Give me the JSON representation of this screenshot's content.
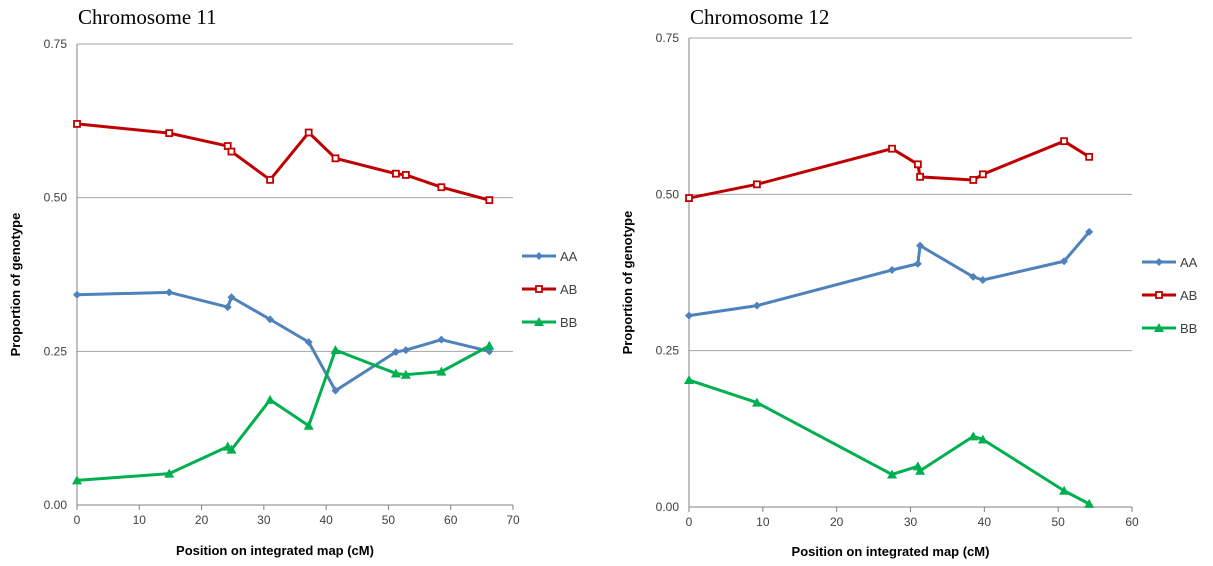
{
  "chart_data": [
    {
      "type": "line",
      "title": "Chromosome 11",
      "xlabel": "Position on integrated map (cM)",
      "ylabel": "Proportion of genotype",
      "xlim": [
        0,
        70
      ],
      "ylim": [
        0,
        0.75
      ],
      "xticks": [
        "0",
        "10",
        "20",
        "30",
        "40",
        "50",
        "60",
        "70"
      ],
      "yticks": [
        "0.00",
        "0.25",
        "0.50",
        "0.75"
      ],
      "grid": "horizontal",
      "legend": "right",
      "series": [
        {
          "name": "AA",
          "color": "#4f81bd",
          "marker": "diamond",
          "x": [
            0,
            14.8,
            24.2,
            24.8,
            31.0,
            37.2,
            41.5,
            51.2,
            52.8,
            58.5,
            66.2
          ],
          "y": [
            0.342,
            0.346,
            0.322,
            0.338,
            0.302,
            0.265,
            0.186,
            0.249,
            0.252,
            0.269,
            0.25
          ]
        },
        {
          "name": "AB",
          "color": "#c00000",
          "marker": "square",
          "x": [
            0,
            14.8,
            24.2,
            24.8,
            31.0,
            37.2,
            41.5,
            51.2,
            52.8,
            58.5,
            66.2
          ],
          "y": [
            0.62,
            0.605,
            0.584,
            0.575,
            0.529,
            0.606,
            0.564,
            0.539,
            0.537,
            0.517,
            0.496
          ]
        },
        {
          "name": "BB",
          "color": "#00b050",
          "marker": "triangle",
          "x": [
            0,
            14.8,
            24.2,
            24.8,
            31.0,
            37.2,
            41.5,
            51.2,
            52.8,
            58.5,
            66.2
          ],
          "y": [
            0.04,
            0.051,
            0.095,
            0.09,
            0.171,
            0.129,
            0.252,
            0.214,
            0.212,
            0.217,
            0.259
          ]
        }
      ]
    },
    {
      "type": "line",
      "title": "Chromosome 12",
      "xlabel": "Position on integrated map (cM)",
      "ylabel": "Proportion of genotype",
      "xlim": [
        0,
        60
      ],
      "ylim": [
        0,
        0.75
      ],
      "xticks": [
        "0",
        "10",
        "20",
        "30",
        "40",
        "50",
        "60"
      ],
      "yticks": [
        "0.00",
        "0.25",
        "0.50",
        "0.75"
      ],
      "grid": "horizontal",
      "legend": "right",
      "series": [
        {
          "name": "AA",
          "color": "#4f81bd",
          "marker": "diamond",
          "x": [
            0,
            9.2,
            27.5,
            31.0,
            31.3,
            38.5,
            39.8,
            50.8,
            54.2
          ],
          "y": [
            0.306,
            0.322,
            0.379,
            0.389,
            0.418,
            0.368,
            0.363,
            0.393,
            0.44
          ]
        },
        {
          "name": "AB",
          "color": "#c00000",
          "marker": "square",
          "x": [
            0,
            9.2,
            27.5,
            31.0,
            31.3,
            38.5,
            39.8,
            50.8,
            54.2
          ],
          "y": [
            0.494,
            0.516,
            0.573,
            0.548,
            0.528,
            0.523,
            0.532,
            0.585,
            0.56
          ]
        },
        {
          "name": "BB",
          "color": "#00b050",
          "marker": "triangle",
          "x": [
            0,
            9.2,
            27.5,
            31.0,
            31.3,
            38.5,
            39.8,
            50.8,
            54.2
          ],
          "y": [
            0.203,
            0.167,
            0.052,
            0.065,
            0.058,
            0.113,
            0.108,
            0.026,
            0.005
          ]
        }
      ]
    }
  ]
}
